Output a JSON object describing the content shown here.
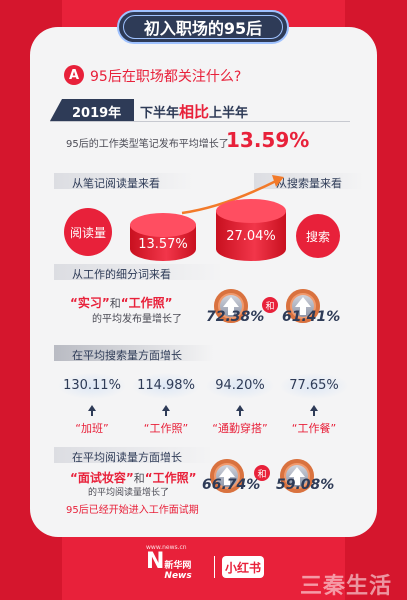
{
  "title": "初入职场的95后",
  "section_a": {
    "badge": "A",
    "question": "95后在职场都关注什么?",
    "year_label": "2019年",
    "compare_prefix": "下半年",
    "compare_bold": "相比",
    "compare_suffix": "上半年",
    "avg_growth_text": "95后的工作类型笔记发布平均增长了",
    "avg_growth_value": "13.59%"
  },
  "reading_vs_search": {
    "left_header": "从笔记阅读量来看",
    "right_header": "从搜索量来看",
    "reading_label": "阅读量",
    "reading_value": "13.57%",
    "search_label": "搜索",
    "search_value": "27.04%"
  },
  "subterms": {
    "header": "从工作的细分词来看",
    "q1": "“实习”",
    "and": "和",
    "q2": "“工作照”",
    "desc": "的平均发布量增长了",
    "v1": "72.38%",
    "v2": "61.41%",
    "he": "和"
  },
  "search_growth": {
    "header": "在平均搜索量方面增长",
    "items": [
      {
        "value": "130.11%",
        "label": "“加班”"
      },
      {
        "value": "114.98%",
        "label": "“工作照”"
      },
      {
        "value": "94.20%",
        "label": "“通勤穿搭”"
      },
      {
        "value": "77.65%",
        "label": "“工作餐”"
      }
    ]
  },
  "reading_growth": {
    "header": "在平均阅读量方面增长",
    "q1": "“面试妆容”",
    "and": "和",
    "q2": "“工作照”",
    "desc": "的平均阅读量增长了",
    "v1": "66.74%",
    "v2": "59.08%",
    "he": "和",
    "footnote": "95后已经开始进入工作面试期"
  },
  "footer": {
    "xinhua_url": "www.news.cn",
    "xinhua_name": "新华网",
    "xinhua_news": "News",
    "xhs_name": "小红书",
    "watermark": "三秦生活"
  },
  "colors": {
    "accent": "#e8213a",
    "navy": "#2e3b57",
    "card": "#f4f4f5"
  }
}
